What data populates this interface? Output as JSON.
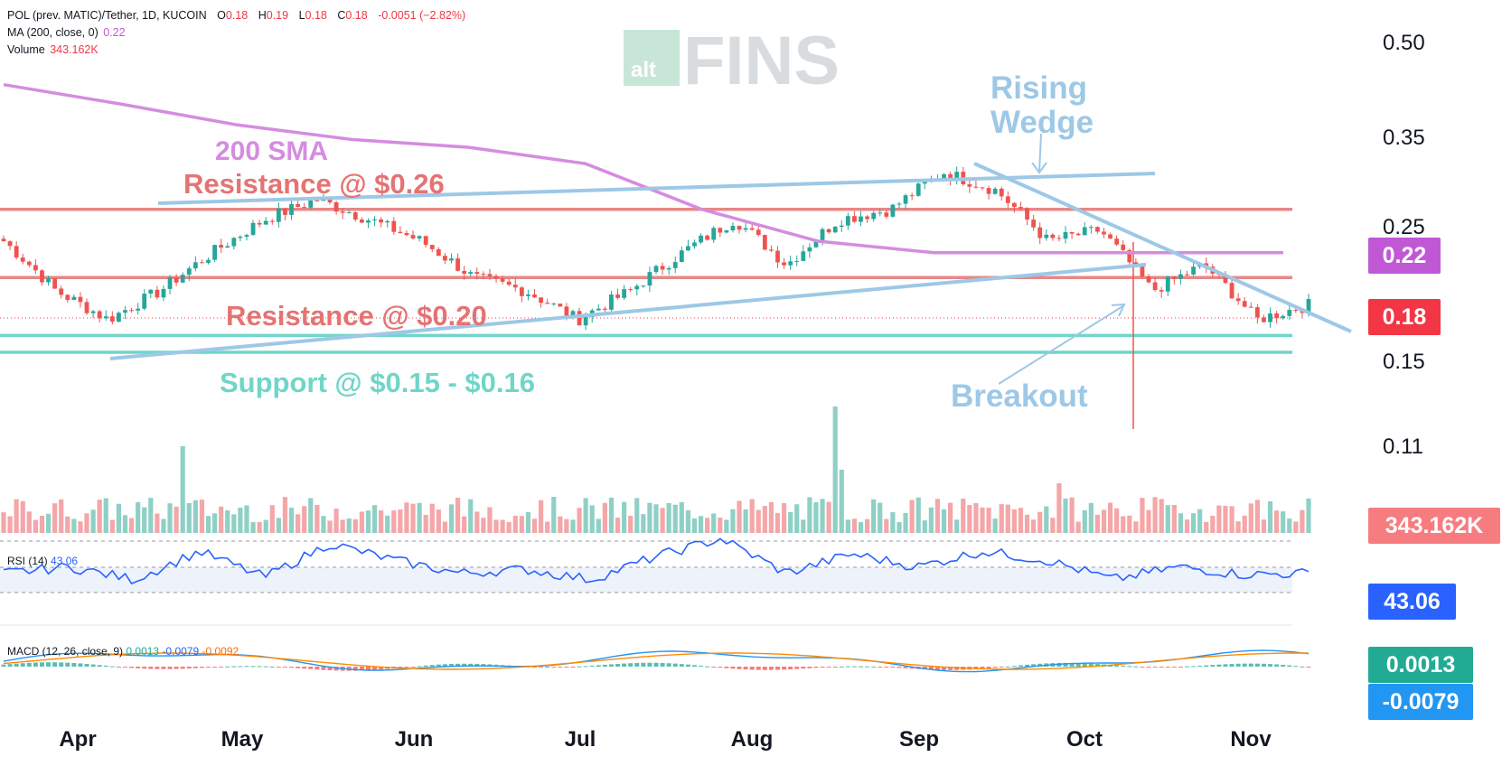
{
  "header": {
    "symbol": "POL (prev. MATIC)/Tether, 1D, KUCOIN",
    "o_label": "O",
    "o_value": "0.18",
    "h_label": "H",
    "h_value": "0.19",
    "l_label": "L",
    "l_value": "0.18",
    "c_label": "C",
    "c_value": "0.18",
    "change": "-0.0051 (−2.82%)",
    "ma_label": "MA (200, close, 0)",
    "ma_value": "0.22",
    "volume_label": "Volume",
    "volume_value": "343.162K"
  },
  "rsi": {
    "label": "RSI (14)",
    "value": "43.06",
    "tag": "43.06"
  },
  "macd": {
    "label": "MACD (12, 26, close, 9)",
    "hist": "0.0013",
    "macd": "-0.0079",
    "signal": "-0.0092",
    "tag_hist": "0.0013",
    "tag_macd": "-0.0079"
  },
  "tags": {
    "ma": "0.22",
    "price": "0.18",
    "volume": "343.162K"
  },
  "logo": {
    "alt": "alt",
    "fins": "FINS"
  },
  "annotations": {
    "sma": "200 SMA",
    "res26": "Resistance @ $0.26",
    "res20": "Resistance @ $0.20",
    "support": "Support @ $0.15 - $0.16",
    "wedge1": "Rising",
    "wedge2": "Wedge",
    "breakout": "Breakout"
  },
  "colors": {
    "up": "#26a69a",
    "down": "#ef5350",
    "vol_up": "#8fd0c6",
    "vol_down": "#f4a6a8",
    "sma": "#d58ce0",
    "resistance": "#e57373",
    "support": "#6fd6c8",
    "trend": "#9dc8e6",
    "rsi": "#2962ff",
    "macd": "#2196f3",
    "signal": "#ff8a00"
  },
  "chart_data": {
    "type": "candlestick",
    "y_axis_ticks": [
      "0.50",
      "0.35",
      "0.25",
      "0.15",
      "0.11"
    ],
    "x_axis_labels": [
      "Apr",
      "May",
      "Jun",
      "Jul",
      "Aug",
      "Sep",
      "Oct",
      "Nov"
    ],
    "levels": {
      "resistance_high": 0.26,
      "resistance_low": 0.2,
      "support_low": 0.15,
      "support_high": 0.16
    },
    "close_series": [
      {
        "month": "Mar",
        "close": 0.23
      },
      {
        "month": "Apr",
        "close": 0.19
      },
      {
        "month": "Apr",
        "close": 0.17
      },
      {
        "month": "Apr",
        "close": 0.19
      },
      {
        "month": "Apr",
        "close": 0.22
      },
      {
        "month": "May",
        "close": 0.25
      },
      {
        "month": "May",
        "close": 0.27
      },
      {
        "month": "May",
        "close": 0.25
      },
      {
        "month": "Jun",
        "close": 0.23
      },
      {
        "month": "Jun",
        "close": 0.2
      },
      {
        "month": "Jun",
        "close": 0.19
      },
      {
        "month": "Jun",
        "close": 0.17
      },
      {
        "month": "Jul",
        "close": 0.19
      },
      {
        "month": "Jul",
        "close": 0.22
      },
      {
        "month": "Jul",
        "close": 0.25
      },
      {
        "month": "Aug",
        "close": 0.21
      },
      {
        "month": "Aug",
        "close": 0.25
      },
      {
        "month": "Aug",
        "close": 0.26
      },
      {
        "month": "Sep",
        "close": 0.3
      },
      {
        "month": "Sep",
        "close": 0.28
      },
      {
        "month": "Sep",
        "close": 0.23
      },
      {
        "month": "Oct",
        "close": 0.24
      },
      {
        "month": "Oct",
        "close": 0.19
      },
      {
        "month": "Oct",
        "close": 0.21
      },
      {
        "month": "Nov",
        "close": 0.17
      },
      {
        "month": "Nov",
        "close": 0.18
      }
    ],
    "ma200_points": [
      0.42,
      0.39,
      0.36,
      0.34,
      0.33,
      0.31,
      0.26,
      0.23,
      0.22,
      0.22,
      0.22,
      0.22
    ],
    "rsi_points": [
      45,
      50,
      40,
      62,
      42,
      68,
      55,
      45,
      48,
      40,
      58,
      72,
      45,
      60,
      50,
      62,
      55,
      40,
      50,
      44,
      45
    ],
    "volume_note": "spike near start of Sep"
  }
}
